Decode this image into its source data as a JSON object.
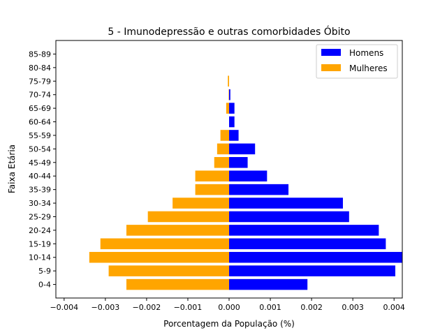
{
  "chart_data": {
    "type": "bar",
    "orientation": "horizontal",
    "title": "5 - Imunodepressão e outras comorbidades Óbito",
    "xlabel": "Porcentagem da População (%)",
    "ylabel": "Faixa Etária",
    "categories": [
      "0-4",
      "5-9",
      "10-14",
      "15-19",
      "20-24",
      "25-29",
      "30-34",
      "35-39",
      "40-44",
      "45-49",
      "50-54",
      "55-59",
      "60-64",
      "65-69",
      "70-74",
      "75-79",
      "80-84",
      "85-89"
    ],
    "series": [
      {
        "name": "Homens",
        "color": "#0000ff",
        "values": [
          0.0019,
          0.00403,
          0.0042,
          0.0038,
          0.00363,
          0.00291,
          0.00276,
          0.00144,
          0.00092,
          0.00045,
          0.00063,
          0.00023,
          0.00013,
          0.00013,
          3e-05,
          0.0,
          0.0,
          0.0
        ]
      },
      {
        "name": "Mulheres",
        "color": "#ffa500",
        "values": [
          -0.00249,
          -0.00292,
          -0.00339,
          -0.00312,
          -0.00249,
          -0.00197,
          -0.00137,
          -0.00082,
          -0.00082,
          -0.00036,
          -0.00029,
          -0.00021,
          0.0,
          -7e-05,
          -1e-05,
          -3e-05,
          0.0,
          0.0
        ]
      }
    ],
    "xlim": [
      -0.0042,
      0.0042
    ],
    "xticks": [
      -0.004,
      -0.003,
      -0.002,
      -0.001,
      0.0,
      0.001,
      0.002,
      0.003,
      0.004
    ],
    "xtick_labels": [
      "−0.004",
      "−0.003",
      "−0.002",
      "−0.001",
      "0.000",
      "0.001",
      "0.002",
      "0.003",
      "0.004"
    ],
    "grid": false,
    "legend_position": "top-right"
  }
}
